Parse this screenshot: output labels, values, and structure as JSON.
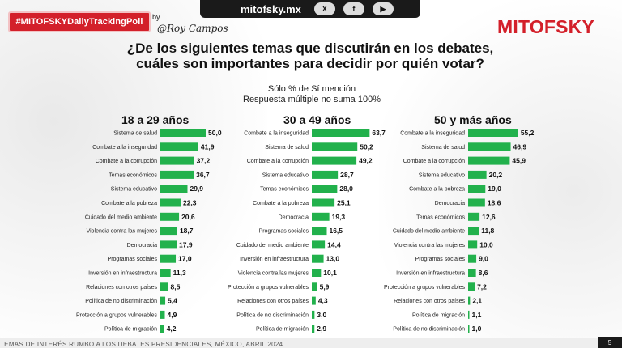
{
  "header": {
    "poll_tag": "#MITOFSKYDailyTrackingPoll",
    "by": "by",
    "signature": "@Roy Campos",
    "site": "mitofsky.mx",
    "social": {
      "x": "X",
      "facebook": "f",
      "youtube": "▶"
    },
    "logo": "MITOFSKY"
  },
  "title": "¿De los siguientes temas que discutirán en los debates, cuáles son importantes para decidir por quién votar?",
  "subtitle_line1": "Sólo % de Sí mención",
  "subtitle_line2": "Respuesta múltiple no suma 100%",
  "footer_text": "TEMAS DE INTERÉS RUMBO A LOS DEBATES PRESIDENCIALES, MÉXICO, ABRIL 2024",
  "page_number": "5",
  "colors": {
    "bar": "#22b14c",
    "accent": "#d3202a"
  },
  "chart_data": [
    {
      "type": "bar",
      "title": "18 a 29 años",
      "categories": [
        "Sistema de salud",
        "Combate a la inseguridad",
        "Combate a la corrupción",
        "Temas económicos",
        "Sistema educativo",
        "Combate a la pobreza",
        "Cuidado del medio ambiente",
        "Violencia contra las mujeres",
        "Democracia",
        "Programas sociales",
        "Inversión en infraestructura",
        "Relaciones con otros países",
        "Política de no discriminación",
        "Protección a grupos vulnerables",
        "Política de migración"
      ],
      "values": [
        50.0,
        41.9,
        37.2,
        36.7,
        29.9,
        22.3,
        20.6,
        18.7,
        17.9,
        17.0,
        11.3,
        8.5,
        5.4,
        4.9,
        4.2
      ],
      "value_labels": [
        "50,0",
        "41,9",
        "37,2",
        "36,7",
        "29,9",
        "22,3",
        "20,6",
        "18,7",
        "17,9",
        "17,0",
        "11,3",
        "8,5",
        "5,4",
        "4,9",
        "4,2"
      ]
    },
    {
      "type": "bar",
      "title": "30 a 49 años",
      "categories": [
        "Combate a la inseguridad",
        "Sistema de salud",
        "Combate a la corrupción",
        "Sistema educativo",
        "Temas económicos",
        "Combate a la pobreza",
        "Democracia",
        "Programas sociales",
        "Cuidado del medio ambiente",
        "Inversión en infraestructura",
        "Violencia contra las mujeres",
        "Protección a grupos vulnerables",
        "Relaciones con otros países",
        "Política de no discriminación",
        "Política de migración"
      ],
      "values": [
        63.7,
        50.2,
        49.2,
        28.7,
        28.0,
        25.1,
        19.3,
        16.5,
        14.4,
        13.0,
        10.1,
        5.9,
        4.3,
        3.0,
        2.9
      ],
      "value_labels": [
        "63,7",
        "50,2",
        "49,2",
        "28,7",
        "28,0",
        "25,1",
        "19,3",
        "16,5",
        "14,4",
        "13,0",
        "10,1",
        "5,9",
        "4,3",
        "3,0",
        "2,9"
      ]
    },
    {
      "type": "bar",
      "title": "50 y más años",
      "categories": [
        "Combate a la inseguridad",
        "Sistema de salud",
        "Combate a la corrupción",
        "Sistema educativo",
        "Combate a la pobreza",
        "Democracia",
        "Temas económicos",
        "Cuidado del medio ambiente",
        "Violencia contra las mujeres",
        "Programas sociales",
        "Inversión en infraestructura",
        "Protección a grupos vulnerables",
        "Relaciones con otros países",
        "Política de migración",
        "Política de no discriminación"
      ],
      "values": [
        55.2,
        46.9,
        45.9,
        20.2,
        19.0,
        18.6,
        12.6,
        11.8,
        10.0,
        9.0,
        8.6,
        7.2,
        2.1,
        1.1,
        1.0
      ],
      "value_labels": [
        "55,2",
        "46,9",
        "45,9",
        "20,2",
        "19,0",
        "18,6",
        "12,6",
        "11,8",
        "10,0",
        "9,0",
        "8,6",
        "7,2",
        "2,1",
        "1,1",
        "1,0"
      ]
    }
  ]
}
